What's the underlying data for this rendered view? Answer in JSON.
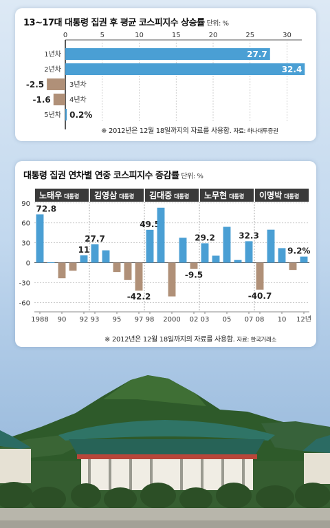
{
  "chart_data": [
    {
      "type": "bar",
      "orientation": "horizontal",
      "title": "13~17대 대통령 집권 후 평균 코스피지수 상승률",
      "unit_label": "단위: %",
      "categories": [
        "1년차",
        "2년차",
        "3년차",
        "4년차",
        "5년차"
      ],
      "values": [
        27.7,
        32.4,
        -2.5,
        -1.6,
        0.2
      ],
      "value_labels": [
        "27.7",
        "32.4",
        "-2.5",
        "-1.6",
        "0.2%"
      ],
      "x_ticks": [
        "0",
        "5",
        "10",
        "15",
        "20",
        "25",
        "30"
      ],
      "xlim": [
        -3,
        33
      ],
      "note": "※ 2012년은 12월 18일까지의 자료를 사용함.",
      "source": "자료: 하나대투증권",
      "colors": {
        "positive": "#4a9fd4",
        "negative": "#b09078"
      }
    },
    {
      "type": "bar",
      "title": "대통령 집권 연차별 연중 코스피지수 증감률",
      "unit_label": "단위: %",
      "presidents": [
        {
          "name": "노태우",
          "suffix": "대통령"
        },
        {
          "name": "김영삼",
          "suffix": "대통령"
        },
        {
          "name": "김대중",
          "suffix": "대통령"
        },
        {
          "name": "노무현",
          "suffix": "대통령"
        },
        {
          "name": "이명박",
          "suffix": "대통령"
        }
      ],
      "years": [
        1988,
        1989,
        1990,
        1991,
        1992,
        1993,
        1994,
        1995,
        1996,
        1997,
        1998,
        1999,
        2000,
        2001,
        2002,
        2003,
        2004,
        2005,
        2006,
        2007,
        2008,
        2009,
        2010,
        2011,
        2012
      ],
      "values": [
        72.8,
        0.5,
        -23.5,
        -12.2,
        11,
        27.7,
        18.6,
        -14.1,
        -26.2,
        -42.2,
        49.5,
        82.8,
        -50.9,
        37.5,
        -9.5,
        29.2,
        10.5,
        54,
        4,
        32.3,
        -40.7,
        49.7,
        21.9,
        -11,
        9.2
      ],
      "labeled": {
        "1988": "72.8",
        "1992": "11",
        "1993": "27.7",
        "1997": "-42.2",
        "1998": "49.5",
        "2002": "-9.5",
        "2003": "29.2",
        "2007": "32.3",
        "2008": "-40.7",
        "2012": "9.2%"
      },
      "x_tick_labels": [
        "1988",
        "90",
        "92",
        "93",
        "95",
        "97",
        "98",
        "2000",
        "02",
        "03",
        "05",
        "07",
        "08",
        "10",
        "12년"
      ],
      "y_ticks": [
        "90",
        "60",
        "30",
        "0",
        "-30",
        "-60"
      ],
      "ylim": [
        -70,
        95
      ],
      "note": "※ 2012년은 12월 18일까지의 자료를 사용함.",
      "source": "자료: 한국거래소",
      "colors": {
        "positive": "#4a9fd4",
        "negative": "#b09078",
        "header": "#3a3a3a"
      }
    }
  ]
}
